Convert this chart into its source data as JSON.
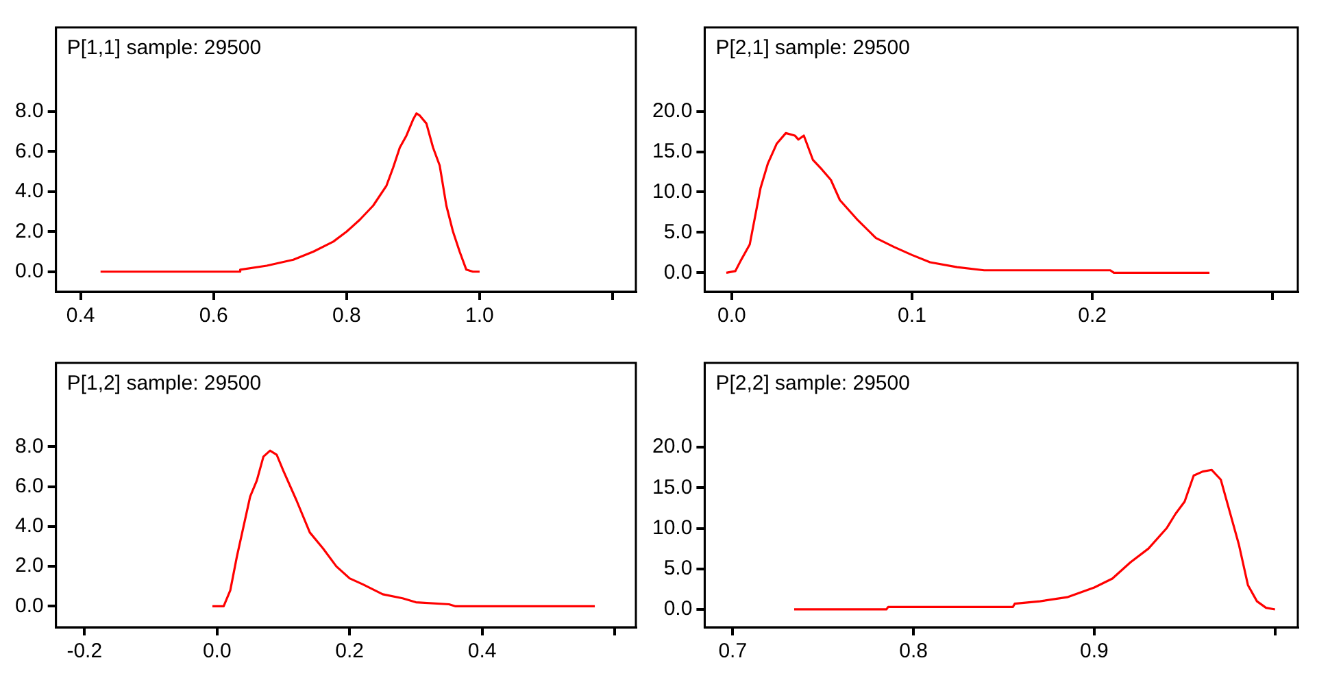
{
  "chart_data": [
    {
      "type": "line",
      "title": "P[1,1] sample: 29500",
      "xlim": [
        0.363,
        1.235
      ],
      "xticks": [
        0.4,
        0.6,
        0.8,
        {
          "value": 1.0,
          "label": "1.0"
        },
        {
          "value": 1.2,
          "label": null
        }
      ],
      "ylim": [
        -1.0,
        12.2
      ],
      "yticks": [
        {
          "value": 0,
          "label": "0.0"
        },
        {
          "value": 2,
          "label": "2.0"
        },
        {
          "value": 4,
          "label": "4.0"
        },
        {
          "value": 6,
          "label": "6.0"
        },
        {
          "value": 8,
          "label": "8.0"
        }
      ],
      "series": [
        {
          "color": "#ff0000",
          "x": [
            0.43,
            0.64,
            0.64,
            0.68,
            0.72,
            0.75,
            0.78,
            0.8,
            0.82,
            0.84,
            0.86,
            0.87,
            0.88,
            0.89,
            0.9,
            0.905,
            0.91,
            0.92,
            0.93,
            0.94,
            0.95,
            0.96,
            0.97,
            0.98,
            0.99,
            1.0
          ],
          "values": [
            0,
            0,
            0.1,
            0.3,
            0.6,
            1.0,
            1.5,
            2.0,
            2.6,
            3.3,
            4.3,
            5.2,
            6.2,
            6.8,
            7.6,
            7.9,
            7.8,
            7.4,
            6.2,
            5.3,
            3.3,
            2.0,
            1.0,
            0.1,
            0,
            0
          ]
        }
      ]
    },
    {
      "type": "line",
      "title": "P[2,1] sample: 29500",
      "xlim": [
        -0.015,
        0.314
      ],
      "xticks": [
        {
          "value": 0,
          "label": "0.0"
        },
        0.1,
        0.2,
        {
          "value": 0.3,
          "label": null
        }
      ],
      "ylim": [
        -2.35,
        30.4
      ],
      "yticks": [
        {
          "value": 0,
          "label": "0.0"
        },
        {
          "value": 5,
          "label": "5.0"
        },
        {
          "value": 10,
          "label": "10.0"
        },
        {
          "value": 15,
          "label": "15.0"
        },
        {
          "value": 20,
          "label": "20.0"
        }
      ],
      "series": [
        {
          "color": "#ff0000",
          "x": [
            -0.003,
            0.002,
            0.005,
            0.01,
            0.013,
            0.016,
            0.02,
            0.025,
            0.03,
            0.035,
            0.037,
            0.04,
            0.045,
            0.05,
            0.055,
            0.06,
            0.07,
            0.08,
            0.09,
            0.1,
            0.11,
            0.125,
            0.14,
            0.17,
            0.21,
            0.212,
            0.265
          ],
          "values": [
            0,
            0.2,
            1.5,
            3.5,
            7,
            10.5,
            13.5,
            16,
            17.3,
            17.0,
            16.5,
            17.0,
            14,
            12.8,
            11.5,
            9,
            6.5,
            4.3,
            3.2,
            2.2,
            1.3,
            0.7,
            0.3,
            0.3,
            0.3,
            0,
            0
          ]
        }
      ]
    },
    {
      "type": "line",
      "title": "P[1,2] sample: 29500",
      "xlim": [
        -0.243,
        0.632
      ],
      "xticks": [
        -0.2,
        {
          "value": 0,
          "label": "0.0"
        },
        0.2,
        0.4,
        {
          "value": 0.6,
          "label": null
        }
      ],
      "ylim": [
        -1.05,
        12.2
      ],
      "yticks": [
        {
          "value": 0,
          "label": "0.0"
        },
        {
          "value": 2,
          "label": "2.0"
        },
        {
          "value": 4,
          "label": "4.0"
        },
        {
          "value": 6,
          "label": "6.0"
        },
        {
          "value": 8,
          "label": "8.0"
        }
      ],
      "series": [
        {
          "color": "#ff0000",
          "x": [
            -0.007,
            0.01,
            0.02,
            0.03,
            0.04,
            0.05,
            0.06,
            0.07,
            0.08,
            0.09,
            0.1,
            0.12,
            0.14,
            0.16,
            0.18,
            0.2,
            0.22,
            0.25,
            0.28,
            0.3,
            0.35,
            0.36,
            0.57
          ],
          "values": [
            0,
            0,
            0.8,
            2.5,
            4.0,
            5.5,
            6.3,
            7.5,
            7.8,
            7.6,
            6.8,
            5.3,
            3.7,
            2.9,
            2.0,
            1.4,
            1.1,
            0.6,
            0.4,
            0.2,
            0.1,
            0,
            0
          ]
        }
      ]
    },
    {
      "type": "line",
      "title": "P[2,2] sample: 29500",
      "xlim": [
        0.6845,
        1.0126
      ],
      "xticks": [
        0.7,
        0.8,
        0.9,
        {
          "value": 1.0,
          "label": null
        }
      ],
      "ylim": [
        -2.2,
        30.4
      ],
      "yticks": [
        {
          "value": 0,
          "label": "0.0"
        },
        {
          "value": 5,
          "label": "5.0"
        },
        {
          "value": 10,
          "label": "10.0"
        },
        {
          "value": 15,
          "label": "15.0"
        },
        {
          "value": 20,
          "label": "20.0"
        }
      ],
      "series": [
        {
          "color": "#ff0000",
          "x": [
            0.734,
            0.785,
            0.786,
            0.855,
            0.856,
            0.87,
            0.885,
            0.9,
            0.91,
            0.92,
            0.93,
            0.94,
            0.945,
            0.95,
            0.955,
            0.96,
            0.965,
            0.97,
            0.975,
            0.98,
            0.985,
            0.99,
            0.995,
            1.0
          ],
          "values": [
            0,
            0,
            0.3,
            0.3,
            0.7,
            1,
            1.5,
            2.7,
            3.8,
            5.8,
            7.5,
            10,
            11.8,
            13.3,
            16.5,
            17.0,
            17.2,
            16,
            12,
            8,
            3,
            1,
            0.2,
            0
          ]
        }
      ]
    }
  ]
}
